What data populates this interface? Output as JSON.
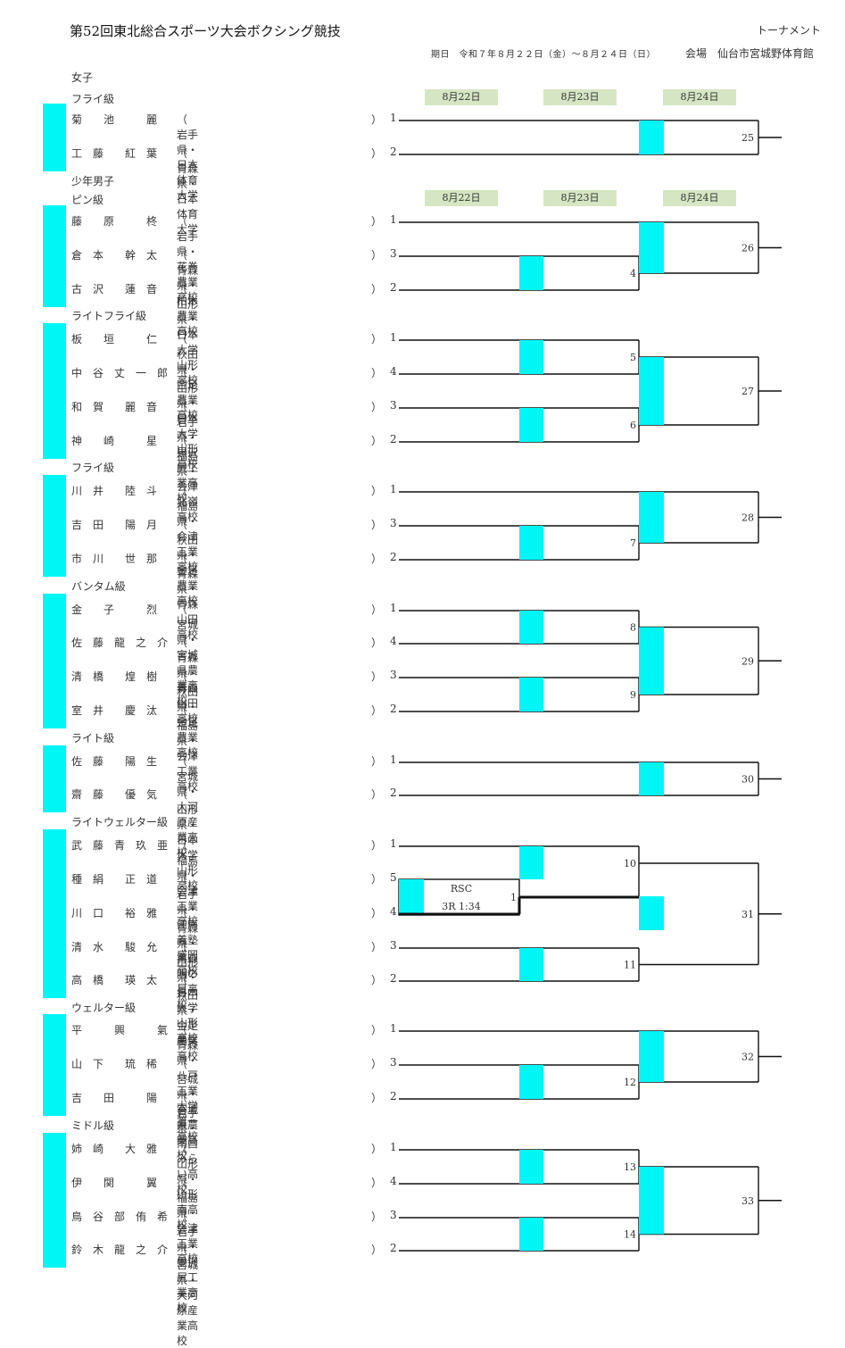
{
  "header": {
    "title": "第52回東北総合スポーツ大会ボクシング競技",
    "doc_type": "トーナメント",
    "period": "期日　令和７年８月２２日（金）～８月２４日（日）",
    "venue": "会場　仙台市宮城野体育館"
  },
  "dates": [
    "8月22日",
    "8月23日",
    "8月24日"
  ],
  "divisions": [
    {
      "section": "女子",
      "name": "フライ級",
      "dates": true,
      "match_nos": [
        "25"
      ],
      "boxers": [
        {
          "name": "菊　　池　　　麗",
          "aff": "（ 岩手県・日本体育大学",
          "close": "）",
          "no": "1"
        },
        {
          "name": "工　藤　　紅　葉",
          "aff": "（ 青森県・日本体育大学",
          "close": "）",
          "no": "2"
        }
      ]
    },
    {
      "section": "少年男子",
      "name": "ピン級",
      "dates": true,
      "match_nos": [
        "4",
        "26"
      ],
      "boxers": [
        {
          "name": "藤　　原　　　柊",
          "aff": "（ 岩手県・花巻農業高校",
          "close": "）",
          "no": "1"
        },
        {
          "name": "倉　本　　幹　太",
          "aff": "（ 青森県・柏木農業高校",
          "close": "）",
          "no": "3"
        },
        {
          "name": "古　沢　　蓮　音",
          "aff": "（ 山形県・日本大学山形高校",
          "close": "）",
          "no": "2"
        }
      ]
    },
    {
      "name": "ライトフライ級",
      "match_nos": [
        "5",
        "6",
        "27"
      ],
      "boxers": [
        {
          "name": "板　　垣　　　仁",
          "aff": "（ 秋田県・金足農業高校",
          "close": "）",
          "no": "1"
        },
        {
          "name": "中　谷　丈　一　郎",
          "aff": "（ 山形県・日本大学山形高校",
          "close": "）",
          "no": "4"
        },
        {
          "name": "和　賀　　麗　音",
          "aff": "（ 岩手県・黒沢尻工業高校",
          "close": "）",
          "no": "3"
        },
        {
          "name": "神　　崎　　　星",
          "aff": "（ 福島県・会津北嶺高校",
          "close": "）",
          "no": "2"
        }
      ]
    },
    {
      "name": "フライ級",
      "match_nos": [
        "7",
        "28"
      ],
      "boxers": [
        {
          "name": "川　井　　陸　斗",
          "aff": "（ 福島県・会津工業高校",
          "close": "）",
          "no": "1"
        },
        {
          "name": "吉　田　　陽　月",
          "aff": "（ 秋田県・金足農業高校",
          "close": "）",
          "no": "3"
        },
        {
          "name": "市　川　　世　那",
          "aff": "（ 青森県・青森山田高校",
          "close": "）",
          "no": "2"
        }
      ]
    },
    {
      "name": "バンタム級",
      "match_nos": [
        "8",
        "9",
        "29"
      ],
      "boxers": [
        {
          "name": "金　　子　　　烈",
          "aff": "（ 宮城県・宮城県農業高校",
          "close": "）",
          "no": "1"
        },
        {
          "name": "佐　藤　龍　之　介",
          "aff": "（ 青森県・青森山田高校",
          "close": "）",
          "no": "4"
        },
        {
          "name": "清　橋　　煌　樹",
          "aff": "（ 秋田県・金足農業高校",
          "close": "）",
          "no": "3"
        },
        {
          "name": "室　井　　慶　汰",
          "aff": "（ 福島県・会津工業高校",
          "close": "）",
          "no": "2"
        }
      ]
    },
    {
      "name": "ライト級",
      "match_nos": [
        "30"
      ],
      "boxers": [
        {
          "name": "佐　藤　　陽　生",
          "aff": "（ 宮城県・大河原産業高校",
          "close": "）",
          "no": "1"
        },
        {
          "name": "齋　藤　　優　気",
          "aff": "（ 山形県・日本大学山形高校",
          "close": "）",
          "no": "2"
        }
      ]
    },
    {
      "name": "ライトウェルター級",
      "match_nos": [
        "1",
        "10",
        "11",
        "31"
      ],
      "result": {
        "line1": "RSC",
        "line2": "3R 1:34"
      },
      "boxers": [
        {
          "name": "武　藤　青　玖　亜",
          "aff": "（ 福島県・会津工業高校",
          "close": "）",
          "no": "1"
        },
        {
          "name": "種　絹　　正　道",
          "aff": "（ 岩手県・江南義塾盛岡高校",
          "close": "）",
          "no": "5"
        },
        {
          "name": "川　口　　裕　雅",
          "aff": "（ 青森県・青森明の星高校",
          "close": "）",
          "no": "4"
        },
        {
          "name": "清　水　　駿　允",
          "aff": "（ 山形県・日本大学山形高校",
          "close": "）",
          "no": "3"
        },
        {
          "name": "高　橋　　瑛　太",
          "aff": "（ 秋田県・金足農業高校",
          "close": "）",
          "no": "2"
        }
      ]
    },
    {
      "name": "ウェルター級",
      "match_nos": [
        "12",
        "32"
      ],
      "boxers": [
        {
          "name": "平　　　興　　　氣",
          "aff": "（ 青森県・八戸工業大学第一高校",
          "close": "）",
          "no": "1"
        },
        {
          "name": "山　下　　琉　稀",
          "aff": "（ 宮城県・宮城県農業高校",
          "close": "）",
          "no": "3"
        },
        {
          "name": "吉　　田　　　陽",
          "aff": "（ 岩手県・南昌みらい高校",
          "close": "）",
          "no": "2"
        }
      ]
    },
    {
      "name": "ミドル級",
      "match_nos": [
        "13",
        "14",
        "33"
      ],
      "boxers": [
        {
          "name": "姉　崎　　大　雅",
          "aff": "（ 山形県・山形南高校",
          "close": "）",
          "no": "1"
        },
        {
          "name": "伊　　関　　　翼",
          "aff": "（ 福島県・会津工業高校",
          "close": "）",
          "no": "4"
        },
        {
          "name": "鳥　谷　部　侑　希",
          "aff": "（ 岩手県・黒沢尻工業高校",
          "close": "）",
          "no": "3"
        },
        {
          "name": "鈴　木　龍　之　介",
          "aff": "（ 宮城県・大河原産業高校",
          "close": "）",
          "no": "2"
        }
      ]
    }
  ]
}
